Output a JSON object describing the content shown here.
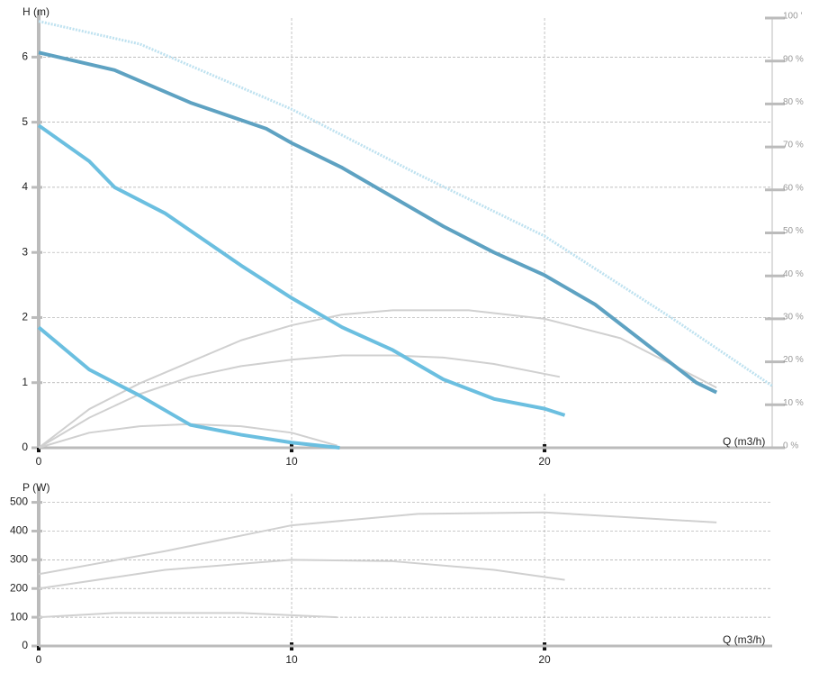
{
  "chart_data": [
    {
      "type": "line",
      "ylabel": "H (m)",
      "xlabel": "Q (m3/h)",
      "xlim": [
        0,
        29
      ],
      "xticks": [
        0,
        10,
        20
      ],
      "ylim": [
        0,
        6.6
      ],
      "yticks": [
        0,
        1,
        2,
        3,
        4,
        5,
        6
      ],
      "y2lim": [
        0,
        100
      ],
      "y2ticks": [
        {
          "value": 0,
          "label": "0 %"
        },
        {
          "value": 10,
          "label": "10 %"
        },
        {
          "value": 20,
          "label": "20 %"
        },
        {
          "value": 30,
          "label": "30 %"
        },
        {
          "value": 40,
          "label": "40 %"
        },
        {
          "value": 50,
          "label": "50 %"
        },
        {
          "value": 60,
          "label": "60 %"
        },
        {
          "value": 70,
          "label": "70 %"
        },
        {
          "value": 80,
          "label": "80 %"
        },
        {
          "value": 90,
          "label": "90 %"
        },
        {
          "value": 100,
          "label": "100 '"
        }
      ],
      "grid": true,
      "series": [
        {
          "color": "#bfe2f0",
          "dashed": true,
          "x": [
            0,
            4,
            10,
            15,
            20,
            25,
            29
          ],
          "values": [
            6.55,
            6.2,
            5.2,
            4.2,
            3.25,
            2.0,
            0.95
          ]
        },
        {
          "color": "#d0d0d0",
          "axis": "y2",
          "x": [
            0,
            2,
            4,
            6,
            8,
            10,
            12,
            14,
            17,
            20,
            23,
            26.8
          ],
          "values": [
            0,
            9,
            15,
            20,
            25,
            28.5,
            31,
            32,
            32,
            30,
            25.5,
            14
          ]
        },
        {
          "color": "#d0d0d0",
          "axis": "y2",
          "x": [
            0,
            2,
            4,
            6,
            8,
            10,
            12,
            14,
            16,
            18,
            20.6
          ],
          "values": [
            0,
            7,
            12.5,
            16.5,
            19,
            20.5,
            21.5,
            21.5,
            21,
            19.5,
            16.5
          ]
        },
        {
          "color": "#d0d0d0",
          "axis": "y2",
          "x": [
            0,
            2,
            4,
            6,
            8,
            10,
            11.8
          ],
          "values": [
            0,
            3.5,
            5,
            5.5,
            5,
            3.5,
            0.5
          ]
        },
        {
          "color": "#5ea2c2",
          "x": [
            0,
            3,
            6,
            9,
            10,
            12,
            14,
            16,
            18,
            20,
            22,
            24,
            26,
            26.8
          ],
          "values": [
            6.07,
            5.8,
            5.3,
            4.9,
            4.68,
            4.3,
            3.85,
            3.4,
            3.0,
            2.65,
            2.2,
            1.6,
            1.0,
            0.85
          ]
        },
        {
          "color": "#6bbfe0",
          "x": [
            0,
            2,
            3,
            5,
            8,
            10,
            12,
            14,
            16,
            18,
            20,
            20.8
          ],
          "values": [
            4.95,
            4.4,
            4.0,
            3.6,
            2.8,
            2.3,
            1.85,
            1.5,
            1.05,
            0.75,
            0.6,
            0.5
          ]
        },
        {
          "color": "#6bbfe0",
          "x": [
            0,
            2,
            4,
            6,
            8,
            10,
            11.9
          ],
          "values": [
            1.85,
            1.2,
            0.8,
            0.35,
            0.2,
            0.08,
            0
          ]
        }
      ]
    },
    {
      "type": "line",
      "ylabel": "P (W)",
      "xlabel": "Q (m3/h)",
      "xlim": [
        0,
        29
      ],
      "xticks": [
        0,
        10,
        20
      ],
      "ylim": [
        0,
        530
      ],
      "yticks": [
        0,
        100,
        200,
        300,
        400,
        500
      ],
      "grid": true,
      "series": [
        {
          "color": "#d0d0d0",
          "x": [
            0,
            5,
            10,
            15,
            20,
            26.8
          ],
          "values": [
            250,
            330,
            420,
            460,
            465,
            430
          ]
        },
        {
          "color": "#d0d0d0",
          "x": [
            0,
            5,
            10,
            14,
            18,
            20.8
          ],
          "values": [
            200,
            265,
            300,
            295,
            265,
            230
          ]
        },
        {
          "color": "#d0d0d0",
          "x": [
            0,
            3,
            8,
            11.8
          ],
          "values": [
            100,
            115,
            115,
            100
          ]
        }
      ]
    }
  ]
}
